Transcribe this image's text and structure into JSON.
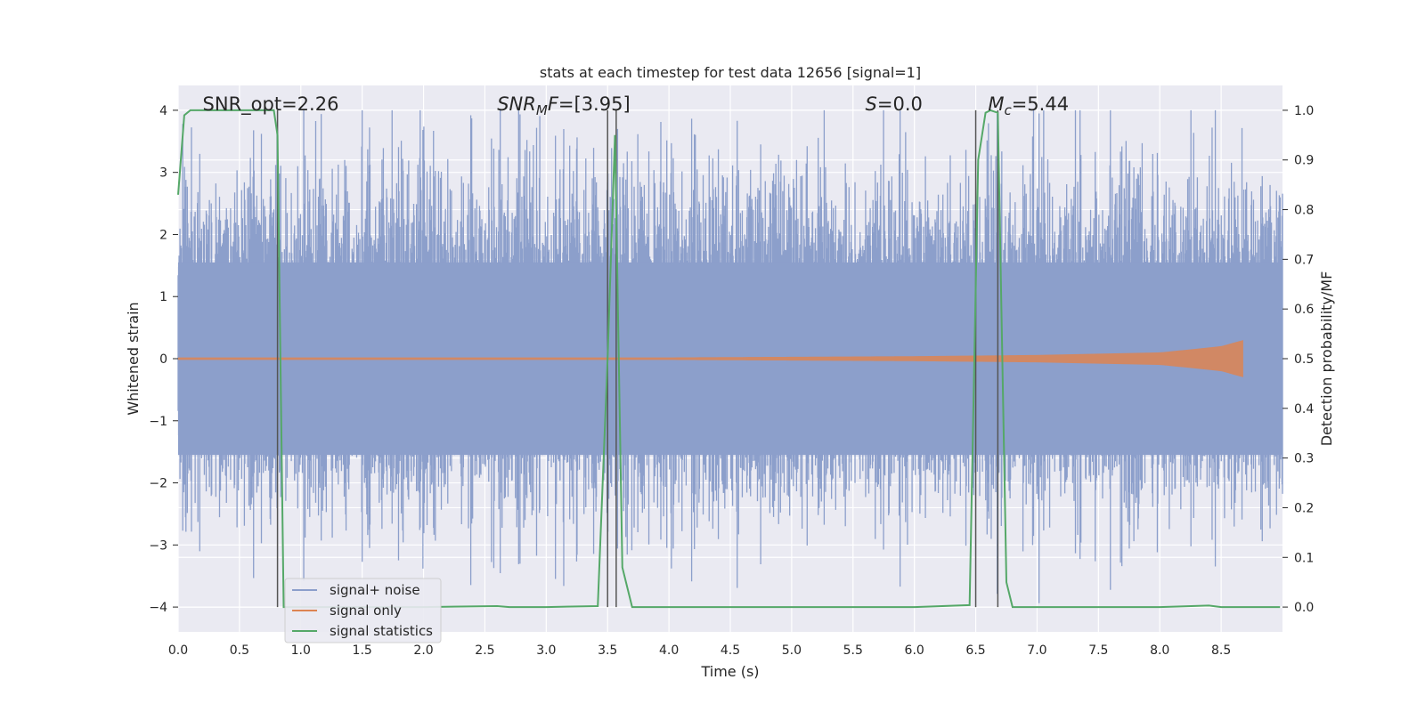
{
  "chart_data": {
    "type": "line",
    "title": "stats at each timestep for test data 12656 [signal=1]",
    "xlabel": "Time (s)",
    "ylabel_left": "Whitened strain",
    "ylabel_right": "Detection probability/MF",
    "xlim": [
      0,
      9.0
    ],
    "ylim_left": [
      -4.4,
      4.4
    ],
    "ylim_right": [
      -0.05,
      1.05
    ],
    "x_ticks": [
      0.0,
      0.5,
      1.0,
      1.5,
      2.0,
      2.5,
      3.0,
      3.5,
      4.0,
      4.5,
      5.0,
      5.5,
      6.0,
      6.5,
      7.0,
      7.5,
      8.0,
      8.5
    ],
    "x_tick_labels": [
      "0.0",
      "0.5",
      "1.0",
      "1.5",
      "2.0",
      "2.5",
      "3.0",
      "3.5",
      "4.0",
      "4.5",
      "5.0",
      "5.5",
      "6.0",
      "6.5",
      "7.0",
      "7.5",
      "8.0",
      "8.5"
    ],
    "y_left_ticks": [
      -4,
      -3,
      -2,
      -1,
      0,
      1,
      2,
      3,
      4
    ],
    "y_left_tick_labels": [
      "−4",
      "−3",
      "−2",
      "−1",
      "0",
      "1",
      "2",
      "3",
      "4"
    ],
    "y_right_ticks": [
      0.0,
      0.1,
      0.2,
      0.3,
      0.4,
      0.5,
      0.6,
      0.7,
      0.8,
      0.9,
      1.0
    ],
    "y_right_tick_labels": [
      "0.0",
      "0.1",
      "0.2",
      "0.3",
      "0.4",
      "0.5",
      "0.6",
      "0.7",
      "0.8",
      "0.9",
      "1.0"
    ],
    "grid": true,
    "legend_position": "lower-left",
    "colors": {
      "noise": "#8c9fcb",
      "signal": "#dd8452",
      "stats": "#55a868",
      "vline": "#555555",
      "background": "#eaeaf2",
      "grid": "#ffffff"
    },
    "annotations": [
      {
        "text": "SNR_opt=2.26",
        "style": "normal",
        "x": 0.2
      },
      {
        "text": "SNR",
        "sub": "M",
        "tail": "F=[3.95]",
        "style": "italic-mixed",
        "x": 2.6
      },
      {
        "text": "S=0.0",
        "style": "italic-lead",
        "x": 5.6
      },
      {
        "text": "M",
        "sub": "c",
        "tail": "=5.44",
        "style": "italic-mixed",
        "x": 6.6
      }
    ],
    "vertical_lines": [
      0.81,
      3.5,
      3.57,
      6.5,
      6.68
    ],
    "series": [
      {
        "name": "signal+ noise",
        "kind": "noise",
        "x_range": [
          0,
          9.0
        ],
        "typical_amplitude": 1.7,
        "peak_amplitude": 4.0
      },
      {
        "name": "signal only",
        "kind": "chirp",
        "x_range": [
          0,
          8.68
        ],
        "x_envelope": [
          0,
          4.0,
          5.0,
          6.0,
          7.0,
          8.0,
          8.5,
          8.68
        ],
        "amplitude_envelope": [
          0.02,
          0.02,
          0.03,
          0.04,
          0.06,
          0.1,
          0.2,
          0.3
        ]
      },
      {
        "name": "signal statistics",
        "kind": "probability",
        "x": [
          0.0,
          0.05,
          0.1,
          0.2,
          0.5,
          0.78,
          0.81,
          0.86,
          1.0,
          2.0,
          2.6,
          2.7,
          3.0,
          3.42,
          3.5,
          3.56,
          3.62,
          3.7,
          4.0,
          5.0,
          6.0,
          6.45,
          6.52,
          6.58,
          6.62,
          6.68,
          6.75,
          6.8,
          7.0,
          7.5,
          8.0,
          8.4,
          8.5,
          8.98
        ],
        "y": [
          0.83,
          0.99,
          1.0,
          1.0,
          1.0,
          1.0,
          0.95,
          0.0,
          0.0,
          0.0,
          0.002,
          0.0,
          0.0,
          0.002,
          0.5,
          0.95,
          0.08,
          0.0,
          0.0,
          0.0,
          0.0,
          0.004,
          0.9,
          0.995,
          1.0,
          0.995,
          0.05,
          0.0,
          0.0,
          0.0,
          0.0,
          0.003,
          0.0,
          0.0
        ]
      }
    ]
  }
}
